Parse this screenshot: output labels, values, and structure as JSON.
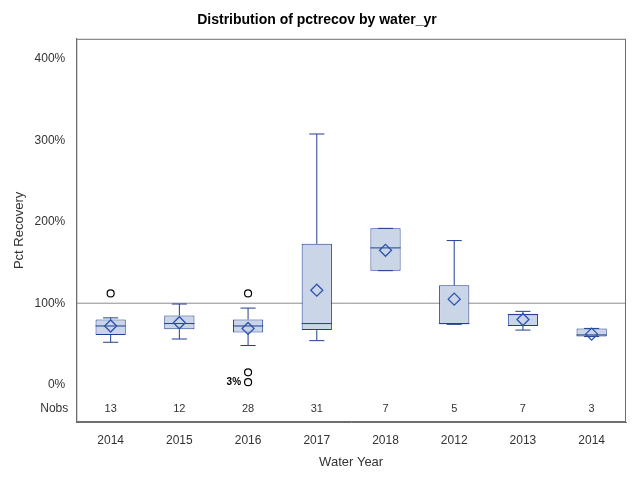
{
  "chart_data": {
    "type": "box",
    "title": "Distribution of pctrecov by water_yr",
    "x_label": "Water Year",
    "y_label": "Pct Recovery",
    "categories": [
      "2014",
      "2015",
      "2016",
      "2017",
      "2018",
      "2012",
      "2013",
      "2014"
    ],
    "boxes": [
      {
        "whisker_low": 52,
        "q1": 61,
        "median": 72,
        "q3": 80,
        "whisker_high": 82,
        "mean": 72,
        "outliers": [
          112
        ]
      },
      {
        "whisker_low": 56,
        "q1": 68,
        "median": 75,
        "q3": 85,
        "whisker_high": 99,
        "mean": 76,
        "outliers": []
      },
      {
        "whisker_low": 48,
        "q1": 64,
        "median": 72,
        "q3": 80,
        "whisker_high": 94,
        "mean": 69,
        "outliers": [
          112,
          15,
          3
        ]
      },
      {
        "whisker_low": 54,
        "q1": 67,
        "median": 75,
        "q3": 173,
        "whisker_high": 308,
        "mean": 116,
        "outliers": []
      },
      {
        "whisker_low": 140,
        "q1": 140,
        "median": 168,
        "q3": 192,
        "whisker_high": 192,
        "mean": 165,
        "outliers": []
      },
      {
        "whisker_low": 74,
        "q1": 74,
        "median": 75,
        "q3": 122,
        "whisker_high": 177,
        "mean": 105,
        "outliers": []
      },
      {
        "whisker_low": 67,
        "q1": 72,
        "median": 86,
        "q3": 87,
        "whisker_high": 90,
        "mean": 80,
        "outliers": []
      },
      {
        "whisker_low": 59,
        "q1": 59,
        "median": 61,
        "q3": 69,
        "whisker_high": 69,
        "mean": 62,
        "outliers": []
      }
    ],
    "nobs_label": "Nobs",
    "nobs": [
      13,
      12,
      28,
      31,
      7,
      5,
      7,
      3
    ],
    "annotations": [
      {
        "category_index": 2,
        "y": 3,
        "text": "3%"
      }
    ],
    "reference_line": 100,
    "ylim": [
      -46,
      425
    ],
    "yticks": [
      {
        "value": 0,
        "label": "0%"
      },
      {
        "value": 100,
        "label": "100%"
      },
      {
        "value": 200,
        "label": "200%"
      },
      {
        "value": 300,
        "label": "300%"
      },
      {
        "value": 400,
        "label": "400%"
      }
    ],
    "grid": false,
    "color": "#cbd5e8",
    "marker": "diamond"
  }
}
